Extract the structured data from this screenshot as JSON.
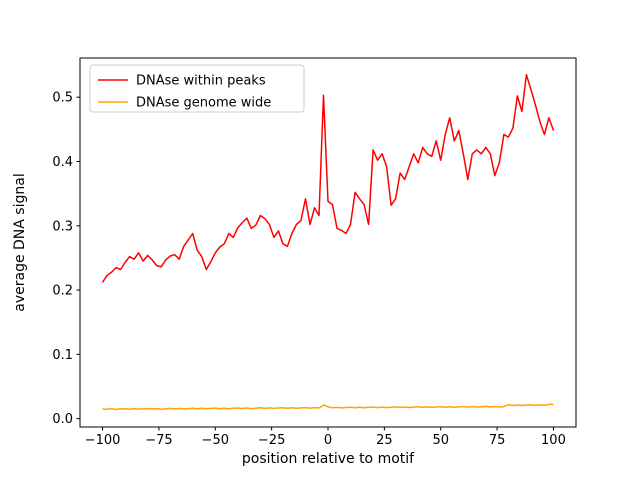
{
  "colors": {
    "background": "#ffffff",
    "axis": "#000000",
    "legend_border": "#cccccc",
    "series_red": "#ff0000",
    "series_orange": "#ffa500"
  },
  "chart_data": {
    "type": "line",
    "title": "",
    "xlabel": "position relative to motif",
    "ylabel": "average DNA signal",
    "xlim": [
      -110,
      110
    ],
    "ylim": [
      -0.013,
      0.561
    ],
    "grid": false,
    "legend_position": "upper left",
    "xticks": [
      -100,
      -75,
      -50,
      -25,
      0,
      25,
      50,
      75,
      100
    ],
    "xtick_labels": [
      "−100",
      "−75",
      "−50",
      "−25",
      "0",
      "25",
      "50",
      "75",
      "100"
    ],
    "yticks": [
      0.0,
      0.1,
      0.2,
      0.3,
      0.4,
      0.5
    ],
    "ytick_labels": [
      "0.0",
      "0.1",
      "0.2",
      "0.3",
      "0.4",
      "0.5"
    ],
    "x": [
      -100,
      -98,
      -96,
      -94,
      -92,
      -90,
      -88,
      -86,
      -84,
      -82,
      -80,
      -78,
      -76,
      -74,
      -72,
      -70,
      -68,
      -66,
      -64,
      -62,
      -60,
      -58,
      -56,
      -54,
      -52,
      -50,
      -48,
      -46,
      -44,
      -42,
      -40,
      -38,
      -36,
      -34,
      -32,
      -30,
      -28,
      -26,
      -24,
      -22,
      -20,
      -18,
      -16,
      -14,
      -12,
      -10,
      -8,
      -6,
      -4,
      -2,
      0,
      2,
      4,
      6,
      8,
      10,
      12,
      14,
      16,
      18,
      20,
      22,
      24,
      26,
      28,
      30,
      32,
      34,
      36,
      38,
      40,
      42,
      44,
      46,
      48,
      50,
      52,
      54,
      56,
      58,
      60,
      62,
      64,
      66,
      68,
      70,
      72,
      74,
      76,
      78,
      80,
      82,
      84,
      86,
      88,
      90,
      92,
      94,
      96,
      98,
      100
    ],
    "series": [
      {
        "name": "DNAse within peaks",
        "color": "#ff0000",
        "values": [
          0.212,
          0.223,
          0.228,
          0.235,
          0.232,
          0.243,
          0.252,
          0.248,
          0.258,
          0.245,
          0.254,
          0.247,
          0.238,
          0.236,
          0.247,
          0.253,
          0.255,
          0.248,
          0.268,
          0.278,
          0.288,
          0.262,
          0.252,
          0.232,
          0.244,
          0.258,
          0.267,
          0.272,
          0.288,
          0.282,
          0.297,
          0.305,
          0.312,
          0.296,
          0.301,
          0.316,
          0.311,
          0.302,
          0.282,
          0.292,
          0.272,
          0.268,
          0.288,
          0.302,
          0.308,
          0.342,
          0.302,
          0.328,
          0.316,
          0.503,
          0.338,
          0.333,
          0.296,
          0.293,
          0.288,
          0.302,
          0.352,
          0.342,
          0.333,
          0.302,
          0.418,
          0.402,
          0.412,
          0.392,
          0.332,
          0.342,
          0.382,
          0.372,
          0.392,
          0.412,
          0.398,
          0.422,
          0.412,
          0.408,
          0.432,
          0.402,
          0.442,
          0.468,
          0.432,
          0.448,
          0.412,
          0.372,
          0.412,
          0.418,
          0.412,
          0.422,
          0.412,
          0.378,
          0.398,
          0.442,
          0.438,
          0.452,
          0.502,
          0.478,
          0.535,
          0.512,
          0.488,
          0.462,
          0.442,
          0.468,
          0.448
        ]
      },
      {
        "name": "DNAse genome wide",
        "color": "#ffa500",
        "values": [
          0.015,
          0.0146,
          0.0153,
          0.0144,
          0.0151,
          0.0155,
          0.0148,
          0.0157,
          0.0149,
          0.0153,
          0.0158,
          0.015,
          0.0156,
          0.0147,
          0.0155,
          0.0159,
          0.0152,
          0.016,
          0.0151,
          0.0157,
          0.0162,
          0.0153,
          0.0161,
          0.0155,
          0.016,
          0.0164,
          0.0156,
          0.0163,
          0.0154,
          0.0161,
          0.0166,
          0.0158,
          0.0165,
          0.0157,
          0.0163,
          0.0168,
          0.016,
          0.0167,
          0.0159,
          0.0165,
          0.017,
          0.0162,
          0.0169,
          0.0161,
          0.0167,
          0.0171,
          0.0164,
          0.0172,
          0.0166,
          0.021,
          0.0185,
          0.0168,
          0.0175,
          0.0167,
          0.0173,
          0.0177,
          0.017,
          0.0178,
          0.0169,
          0.0175,
          0.018,
          0.0172,
          0.0179,
          0.0171,
          0.0177,
          0.0182,
          0.0174,
          0.0181,
          0.0173,
          0.0179,
          0.0184,
          0.0176,
          0.0183,
          0.0175,
          0.0181,
          0.0186,
          0.0178,
          0.0185,
          0.0177,
          0.0183,
          0.0188,
          0.018,
          0.0187,
          0.0179,
          0.0185,
          0.019,
          0.0182,
          0.0189,
          0.0181,
          0.0187,
          0.0215,
          0.0205,
          0.0212,
          0.0204,
          0.021,
          0.0214,
          0.0206,
          0.0213,
          0.0208,
          0.0223,
          0.022
        ]
      }
    ]
  }
}
